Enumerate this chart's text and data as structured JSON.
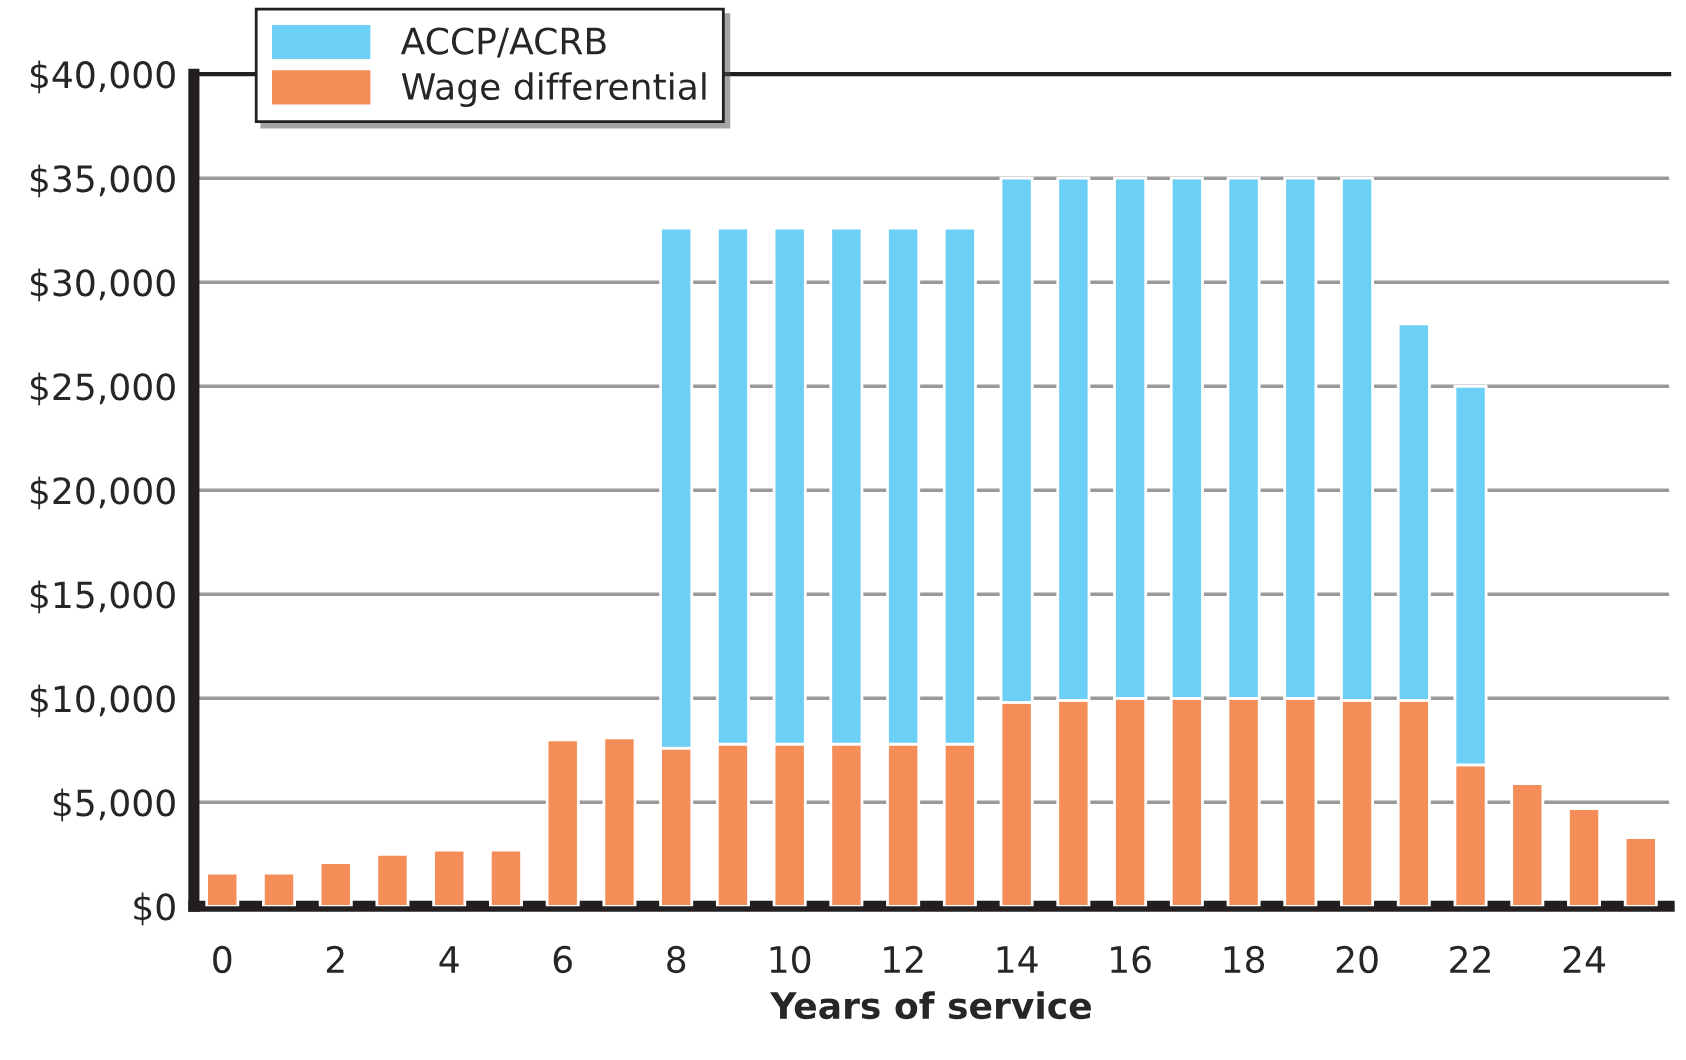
{
  "chart_data": {
    "type": "bar",
    "stacked": true,
    "xlabel": "Years of service",
    "categories": [
      "0",
      null,
      "2",
      null,
      "4",
      null,
      "6",
      null,
      "8",
      null,
      "10",
      null,
      "12",
      null,
      "14",
      null,
      "16",
      null,
      "18",
      null,
      "20",
      null,
      "22",
      null,
      "24",
      null
    ],
    "series": [
      {
        "name": "Wage differential",
        "color": "#f58d59",
        "values": [
          1600,
          1600,
          2100,
          2500,
          2700,
          2700,
          8000,
          8100,
          7600,
          7800,
          7800,
          7800,
          7800,
          7800,
          9800,
          9900,
          10000,
          10000,
          10000,
          10000,
          9900,
          9900,
          6800,
          5900,
          4700,
          3300
        ]
      },
      {
        "name": "ACCP/ACRB",
        "color": "#6ccff6",
        "values": [
          null,
          null,
          null,
          null,
          null,
          null,
          null,
          null,
          25000,
          24800,
          24800,
          24800,
          24800,
          24800,
          25200,
          25100,
          25000,
          25000,
          25000,
          25000,
          25100,
          18100,
          18200,
          null,
          null,
          null
        ]
      }
    ],
    "ylim": [
      0,
      40000
    ],
    "yticks": [
      {
        "value": 0,
        "label": "$0"
      },
      {
        "value": 5000,
        "label": "$5,000"
      },
      {
        "value": 10000,
        "label": "$10,000"
      },
      {
        "value": 15000,
        "label": "$15,000"
      },
      {
        "value": 20000,
        "label": "$20,000"
      },
      {
        "value": 25000,
        "label": "$25,000"
      },
      {
        "value": 30000,
        "label": "$30,000"
      },
      {
        "value": 35000,
        "label": "$35,000"
      },
      {
        "value": 40000,
        "label": "$40,000"
      }
    ],
    "grid": "y",
    "legend": "top left"
  }
}
